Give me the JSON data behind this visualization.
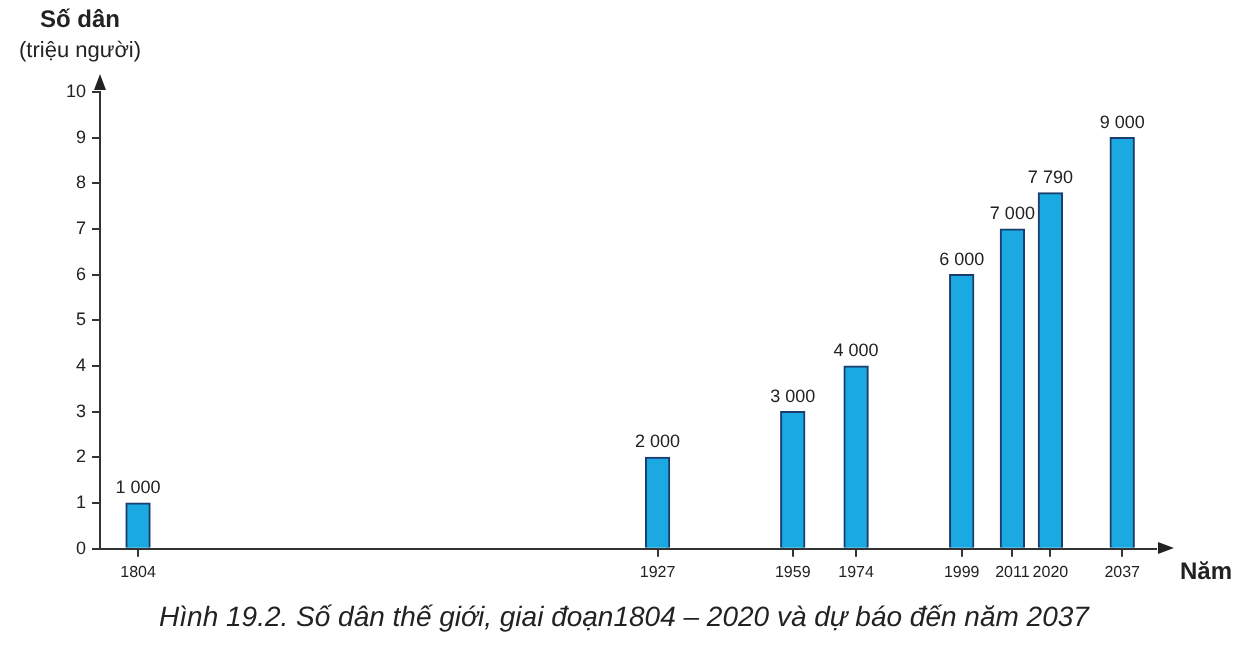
{
  "chart_data": {
    "type": "bar",
    "ylabel": "Số dân\n(triệu người)",
    "xlabel": "Năm",
    "x": [
      1804,
      1927,
      1959,
      1974,
      1999,
      2011,
      2020,
      2037
    ],
    "values": [
      1,
      2,
      3,
      4,
      6,
      7,
      7.79,
      9
    ],
    "color": "#1ba9e1",
    "xlim": [
      1795,
      2045
    ],
    "xticks": [
      1804,
      1927,
      1959,
      1974,
      1999,
      2011,
      2020,
      2037
    ],
    "ylim": [
      0,
      10
    ],
    "yticks": [
      0,
      1,
      2,
      3,
      4,
      5,
      6,
      7,
      8,
      9,
      10
    ],
    "grid": false,
    "legend": false,
    "annotations": [
      {
        "text": "1 000",
        "x": 1804,
        "y": 1
      },
      {
        "text": "2 000",
        "x": 1927,
        "y": 2
      },
      {
        "text": "3 000",
        "x": 1959,
        "y": 3
      },
      {
        "text": "4 000",
        "x": 1974,
        "y": 4
      },
      {
        "text": "6 000",
        "x": 1999,
        "y": 6
      },
      {
        "text": "7 000",
        "x": 2011,
        "y": 7
      },
      {
        "text": "7 790",
        "x": 2020,
        "y": 7.79
      },
      {
        "text": "9 000",
        "x": 2037,
        "y": 9
      },
      "Hình 19.2. Số dân thế giới, giai đoạn1804 – 2020 và dự báo đến năm 2037"
    ]
  }
}
